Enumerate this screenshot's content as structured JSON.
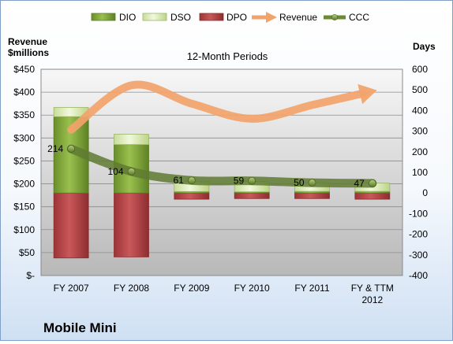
{
  "chart_data": {
    "type": "bar",
    "title": "12-Month Periods",
    "company": "Mobile Mini",
    "left_axis_label_lines": [
      "Revenue",
      "$millions"
    ],
    "right_axis_label": "Days",
    "categories": [
      [
        "FY 2007"
      ],
      [
        "FY 2008"
      ],
      [
        "FY 2009"
      ],
      [
        "FY 2010"
      ],
      [
        "FY 2011"
      ],
      [
        "FY & TTM",
        "2012"
      ]
    ],
    "left_axis": {
      "ticks": [
        0,
        50,
        100,
        150,
        200,
        250,
        300,
        350,
        400,
        450
      ],
      "tick_labels": [
        "$-",
        "$50",
        "$100",
        "$150",
        "$200",
        "$250",
        "$300",
        "$350",
        "$400",
        "$450"
      ],
      "ylim": [
        0,
        450
      ]
    },
    "right_axis": {
      "ticks": [
        -400,
        -300,
        -200,
        -100,
        0,
        100,
        200,
        300,
        400,
        500,
        600
      ],
      "tick_labels": [
        "-400",
        "-300",
        "-200",
        "-100",
        "0",
        "100",
        "200",
        "300",
        "400",
        "500",
        "600"
      ],
      "ylim": [
        -400,
        600
      ]
    },
    "series": [
      {
        "name": "DIO",
        "axis": "right",
        "color": "#7fa33a",
        "values": [
          370,
          235,
          7,
          6,
          8,
          8
        ]
      },
      {
        "name": "DSO",
        "axis": "right",
        "color": "#dfeec0",
        "values": [
          45,
          50,
          50,
          50,
          40,
          40
        ]
      },
      {
        "name": "DPO",
        "axis": "right",
        "color": "#b5484a",
        "values": [
          -315,
          -310,
          -30,
          -27,
          -27,
          -30
        ]
      },
      {
        "name": "Revenue",
        "axis": "left",
        "color": "#f2a36b",
        "values": [
          318,
          415,
          375,
          342,
          372,
          402
        ]
      },
      {
        "name": "CCC",
        "axis": "right",
        "color": "#5f7a32",
        "values": [
          214,
          104,
          61,
          59,
          50,
          47
        ]
      }
    ],
    "ccc_labels": [
      "214",
      "104",
      "61",
      "59",
      "50",
      "47"
    ],
    "grid": true,
    "legend_position": "top"
  }
}
